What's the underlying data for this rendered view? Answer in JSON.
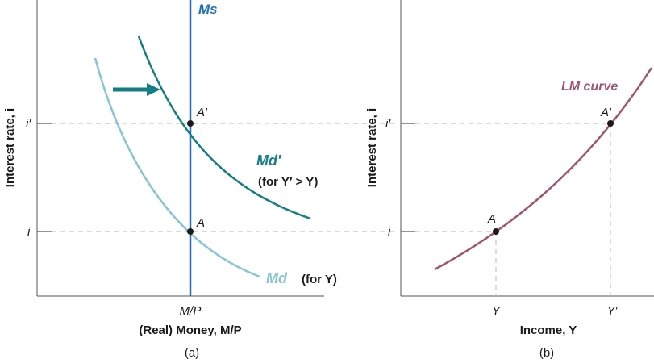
{
  "colors": {
    "axis": "#555555",
    "guide": "#b5b5b5",
    "supply": "#1f6fb2",
    "demand_old": "#86c5d3",
    "demand_new": "#137e83",
    "lm": "#a1546f",
    "text": "#1a1a1a"
  },
  "panel_a": {
    "y_axis_label": "Interest rate, i",
    "x_axis_label": "(Real) Money, M/P",
    "x_tick": "M/P",
    "y_tick_high": "i′",
    "y_tick_low": "i",
    "supply_label": "Ms",
    "demand_label": "Md",
    "demand_note": "(for Y)",
    "demand_new_label": "Md′",
    "demand_new_note": "(for Y′ > Y)",
    "point_a": "A",
    "point_a_prime": "A′",
    "caption": "(a)",
    "shift_arrow": "right-arrow-icon"
  },
  "panel_b": {
    "y_axis_label": "Interest rate, i",
    "x_axis_label": "Income, Y",
    "y_tick_high": "i′",
    "y_tick_low": "i",
    "x_tick_low": "Y",
    "x_tick_high": "Y′",
    "curve_label": "LM curve",
    "point_a": "A",
    "point_a_prime": "A′",
    "caption": "(b)"
  }
}
